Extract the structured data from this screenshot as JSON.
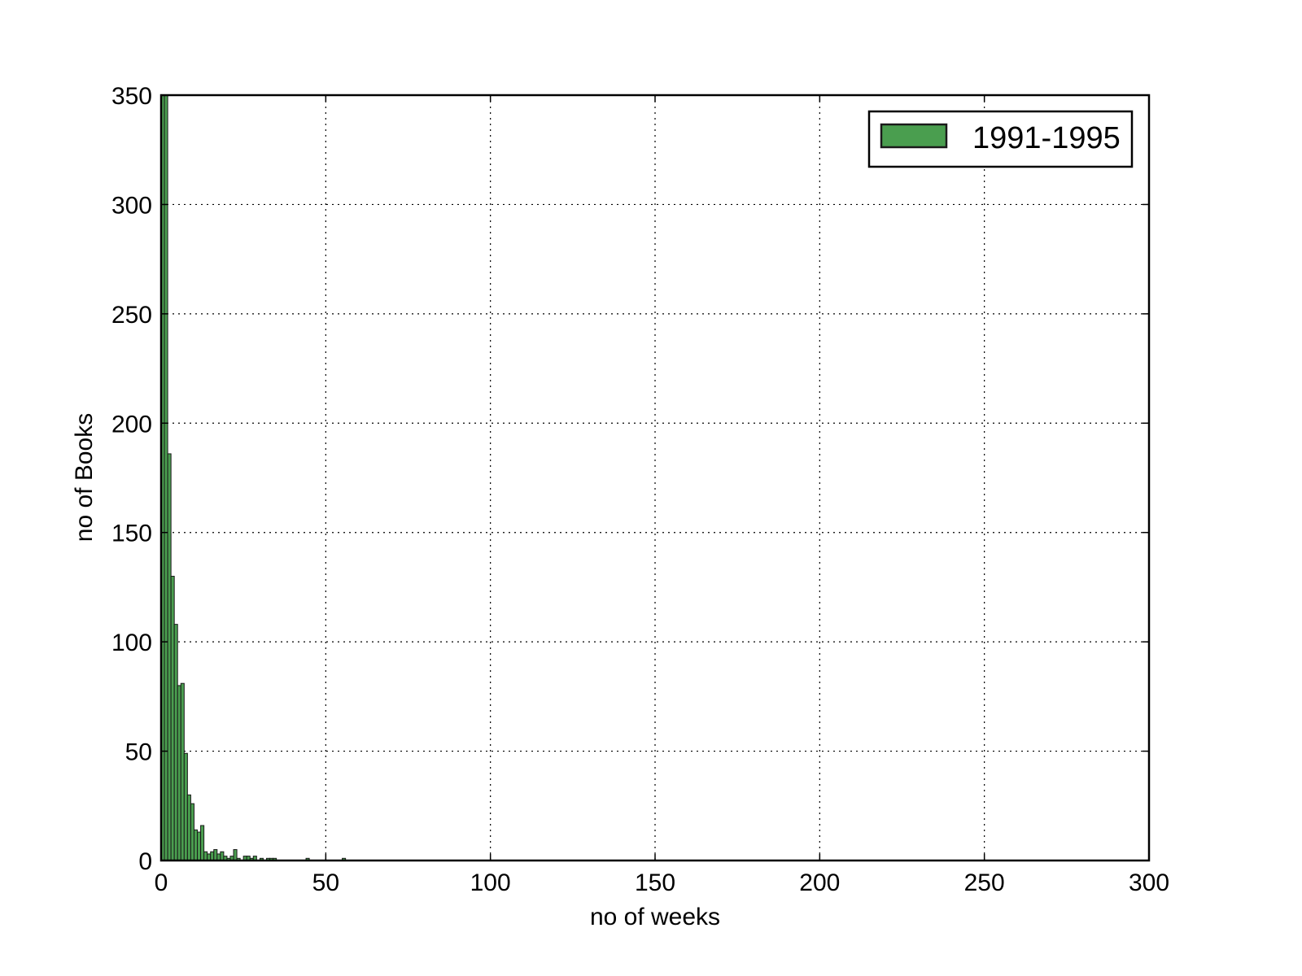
{
  "chart_data": {
    "type": "bar",
    "title": "",
    "xlabel": "no of weeks",
    "ylabel": "no of Books",
    "xlim": [
      0,
      300
    ],
    "ylim": [
      0,
      350
    ],
    "xticks": [
      0,
      50,
      100,
      150,
      200,
      250,
      300
    ],
    "yticks": [
      0,
      50,
      100,
      150,
      200,
      250,
      300,
      350
    ],
    "grid": true,
    "legend_position": "top-right",
    "bin_width": 1,
    "series": [
      {
        "name": "1991-1995",
        "color": "#4a9e4f",
        "edge_color": "#1a1a1a",
        "bins": [
          {
            "x": 0,
            "value": 350
          },
          {
            "x": 1,
            "value": 350
          },
          {
            "x": 2,
            "value": 186
          },
          {
            "x": 3,
            "value": 130
          },
          {
            "x": 4,
            "value": 108
          },
          {
            "x": 5,
            "value": 80
          },
          {
            "x": 6,
            "value": 81
          },
          {
            "x": 7,
            "value": 49
          },
          {
            "x": 8,
            "value": 30
          },
          {
            "x": 9,
            "value": 26
          },
          {
            "x": 10,
            "value": 14
          },
          {
            "x": 11,
            "value": 13
          },
          {
            "x": 12,
            "value": 16
          },
          {
            "x": 13,
            "value": 4
          },
          {
            "x": 14,
            "value": 3
          },
          {
            "x": 15,
            "value": 4
          },
          {
            "x": 16,
            "value": 5
          },
          {
            "x": 17,
            "value": 3
          },
          {
            "x": 18,
            "value": 4
          },
          {
            "x": 19,
            "value": 2
          },
          {
            "x": 20,
            "value": 1
          },
          {
            "x": 21,
            "value": 2
          },
          {
            "x": 22,
            "value": 5
          },
          {
            "x": 23,
            "value": 1
          },
          {
            "x": 25,
            "value": 2
          },
          {
            "x": 26,
            "value": 2
          },
          {
            "x": 27,
            "value": 1
          },
          {
            "x": 28,
            "value": 2
          },
          {
            "x": 30,
            "value": 1
          },
          {
            "x": 32,
            "value": 1
          },
          {
            "x": 33,
            "value": 1
          },
          {
            "x": 34,
            "value": 1
          },
          {
            "x": 44,
            "value": 1
          },
          {
            "x": 55,
            "value": 1
          }
        ]
      }
    ]
  }
}
